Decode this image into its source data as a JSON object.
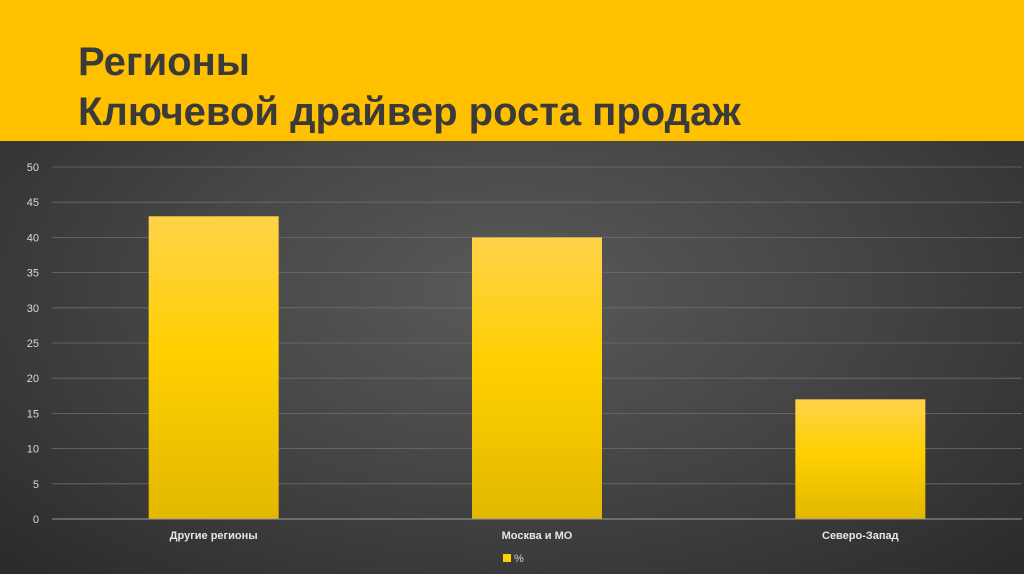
{
  "header": {
    "title_line1": "Регионы",
    "title_line2": "Ключевой драйвер роста продаж"
  },
  "colors": {
    "header_bg": "#FFC000",
    "title_text": "#3A3A3A",
    "bar_top": "#FFD24A",
    "bar_mid": "#FFD000",
    "bar_bottom": "#E2B800",
    "plot_bg": "#464646"
  },
  "chart_data": {
    "type": "bar",
    "categories": [
      "Другие регионы",
      "Москва и МО",
      "Северо-Запад"
    ],
    "series": [
      {
        "name": "%",
        "values": [
          43,
          40,
          17
        ]
      }
    ],
    "ylim": [
      0,
      50
    ],
    "yticks": [
      0,
      5,
      10,
      15,
      20,
      25,
      30,
      35,
      40,
      45,
      50
    ],
    "grid": true,
    "legend": "bottom-center"
  }
}
